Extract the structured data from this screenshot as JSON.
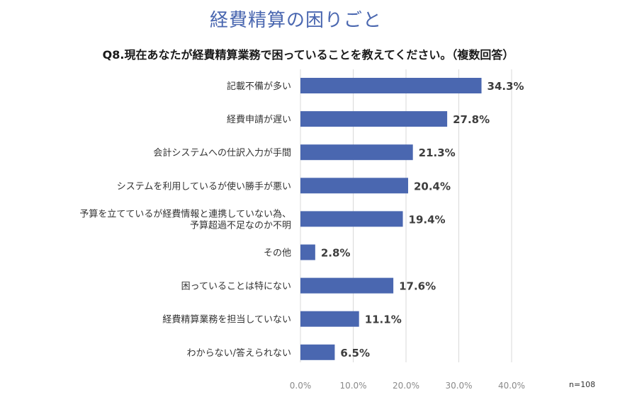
{
  "title": "経費精算の困りごと",
  "question": "Q8.現在あなたが経費精算業務で困っていることを教えてください。（複数回答）",
  "sample_note": "n=108",
  "colors": {
    "bar": "#4a67b0",
    "title": "#4a67b0",
    "grid": "#d9d9d9"
  },
  "chart_data": {
    "type": "bar",
    "orientation": "horizontal",
    "categories": [
      [
        "記載不備が多い"
      ],
      [
        "経費申請が遅い"
      ],
      [
        "会計システムへの仕訳入力が手間"
      ],
      [
        "システムを利用しているが使い勝手が悪い"
      ],
      [
        "予算を立てているが経費情報と連携していない為、",
        "予算超過不足なのか不明"
      ],
      [
        "その他"
      ],
      [
        "困っていることは特にない"
      ],
      [
        "経費精算業務を担当していない"
      ],
      [
        "わからない/答えられない"
      ]
    ],
    "values": [
      34.3,
      27.8,
      21.3,
      20.4,
      19.4,
      2.8,
      17.6,
      11.1,
      6.5
    ],
    "value_labels": [
      "34.3%",
      "27.8%",
      "21.3%",
      "20.4%",
      "19.4%",
      "2.8%",
      "17.6%",
      "11.1%",
      "6.5%"
    ],
    "x_ticks": [
      "0.0%",
      "10.0%",
      "20.0%",
      "30.0%",
      "40.0%"
    ],
    "xlim": [
      0,
      40
    ],
    "grid": true
  }
}
